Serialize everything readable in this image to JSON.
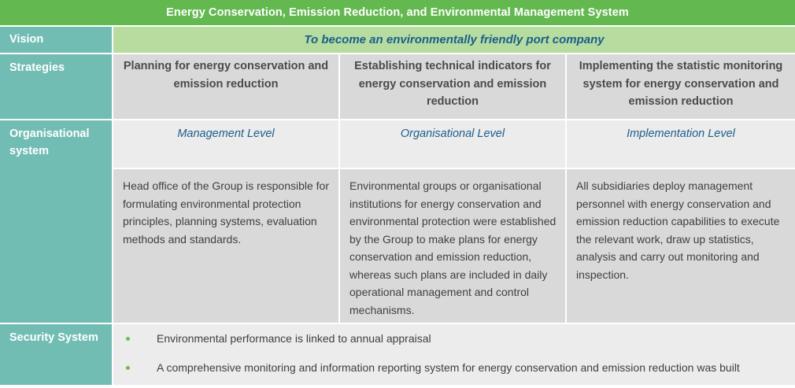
{
  "title": "Energy Conservation, Emission Reduction, and Environmental Management System",
  "rows": {
    "vision": {
      "label": "Vision",
      "value": "To become an environmentally friendly port company"
    },
    "strategies": {
      "label": "Strategies",
      "items": [
        "Planning for energy conservation and emission reduction",
        "Establishing technical indicators for energy conservation and emission reduction",
        "Implementing the statistic monitoring system for energy conservation and emission reduction"
      ]
    },
    "organisational": {
      "label": "Organisational system",
      "levels": [
        "Management Level",
        "Organisational Level",
        "Implementation Level"
      ],
      "descriptions": [
        "Head office of the Group is responsible for formulating environmental protection principles, planning systems, evaluation methods and standards.",
        "Environmental groups or organisational institutions for energy conservation and environmental protection were established by the Group to make plans for energy conservation and emission reduction, whereas such plans are included in daily operational management and control mechanisms.",
        "All subsidiaries deploy management personnel with energy conservation and emission reduction capabilities to execute the relevant work, draw up statistics, analysis and carry out monitoring and inspection."
      ]
    },
    "security": {
      "label": "Security System",
      "bullets": [
        "Environmental performance is linked to annual appraisal",
        "A comprehensive monitoring and information reporting system for energy conservation and emission reduction was built"
      ]
    }
  },
  "colors": {
    "title_bar": "#63b950",
    "label_column": "#71bdb4",
    "vision_band": "#b6dca0",
    "accent_text": "#1b5e8c",
    "cell_dark": "#d9d9d9",
    "cell_light": "#ececec",
    "bullet": "#6cbf4f"
  }
}
